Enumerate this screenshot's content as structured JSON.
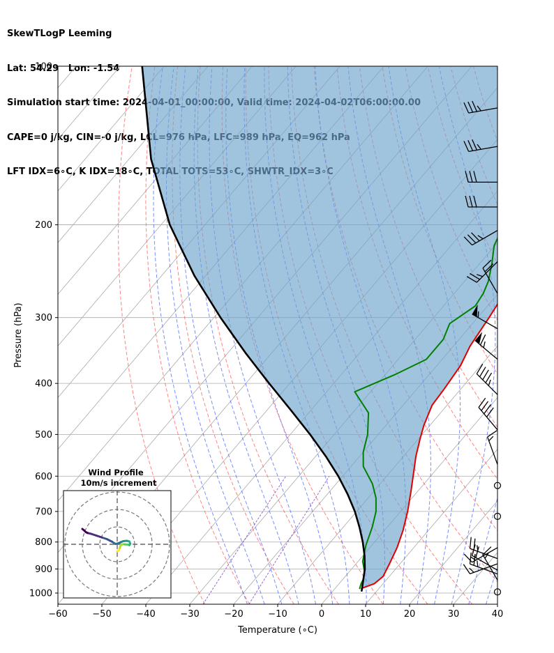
{
  "header": {
    "line1": "SkewTLogP Leeming",
    "line2": "Lat: 54.29   Lon: -1.54",
    "line3": "Simulation start time: 2024-04-01_00:00:00, Valid time: 2024-04-02T06:00:00.00",
    "line4": "CAPE=0 j/kg, CIN=-0 j/kg, LCL=976 hPa, LFC=989 hPa, EQ=962 hPa",
    "line5": "LFT IDX=6∘C, K IDX=18∘C, TOTAL TOTS=53∘C, SHWTR_IDX=3∘C"
  },
  "chart_data": {
    "type": "line",
    "subtype": "skew-t log-p",
    "xlabel": "Temperature (∘C)",
    "ylabel": "Pressure (hPa)",
    "xlim": [
      -60,
      40
    ],
    "ylim": [
      1050,
      100
    ],
    "y_scale": "log",
    "grid": true,
    "x_ticks": [
      -60,
      -50,
      -40,
      -30,
      -20,
      -10,
      0,
      10,
      20,
      30,
      40
    ],
    "y_ticks": [
      100,
      200,
      300,
      400,
      500,
      600,
      700,
      800,
      900,
      1000
    ],
    "colors": {
      "temperature": "#e00000",
      "dewpoint": "#008000",
      "parcel": "#000000",
      "cape_fill": "#6fa4cc",
      "dry_adiabat": "#ff4040",
      "moist_adiabat": "#3050ff",
      "mixing_ratio": "#8040c0",
      "isotherm": "#aaaaaa",
      "wind_barb": "#000000"
    },
    "series": [
      {
        "key": "temperature",
        "points": [
          [
            6,
            980
          ],
          [
            8,
            960
          ],
          [
            8.6,
            930
          ],
          [
            7.6,
            880
          ],
          [
            6.2,
            820
          ],
          [
            4.2,
            760
          ],
          [
            1.6,
            700
          ],
          [
            -1.6,
            640
          ],
          [
            -4.6,
            590
          ],
          [
            -7.2,
            550
          ],
          [
            -9.6,
            510
          ],
          [
            -11.4,
            480
          ],
          [
            -13.4,
            440
          ],
          [
            -13.8,
            410
          ],
          [
            -14.6,
            370
          ],
          [
            -16.2,
            340
          ],
          [
            -16.8,
            320
          ],
          [
            -17.4,
            300
          ],
          [
            -18.4,
            275
          ],
          [
            -19.6,
            255
          ],
          [
            -21.4,
            238
          ],
          [
            -23.8,
            224
          ],
          [
            -26.6,
            210
          ],
          [
            -29.8,
            195
          ],
          [
            -32,
            180
          ],
          [
            -33.2,
            166
          ],
          [
            -34.2,
            153
          ],
          [
            -36.2,
            140
          ],
          [
            -39.2,
            126
          ],
          [
            -41.4,
            112
          ],
          [
            -42,
            100
          ]
        ]
      },
      {
        "key": "dewpoint",
        "points": [
          [
            5.6,
            980
          ],
          [
            5,
            960
          ],
          [
            4.6,
            940
          ],
          [
            3.4,
            910
          ],
          [
            1,
            870
          ],
          [
            -1.4,
            810
          ],
          [
            -3.4,
            750
          ],
          [
            -5.6,
            700
          ],
          [
            -8.2,
            660
          ],
          [
            -11.8,
            620
          ],
          [
            -17.2,
            575
          ],
          [
            -20,
            540
          ],
          [
            -22.4,
            500
          ],
          [
            -26.4,
            455
          ],
          [
            -33.6,
            415
          ],
          [
            -27.8,
            385
          ],
          [
            -23.6,
            360
          ],
          [
            -23.6,
            330
          ],
          [
            -25.2,
            308
          ],
          [
            -22.8,
            285
          ],
          [
            -23.4,
            270
          ],
          [
            -24.6,
            256
          ],
          [
            -27.2,
            237
          ],
          [
            -30.2,
            219
          ],
          [
            -32,
            200
          ],
          [
            -25.2,
            172
          ],
          [
            -21.8,
            147
          ],
          [
            -21.6,
            130
          ],
          [
            -22.6,
            112
          ],
          [
            -23,
            100
          ]
        ]
      },
      {
        "key": "parcel",
        "points": [
          [
            6.5,
            990
          ],
          [
            5,
            950
          ],
          [
            3,
            900
          ],
          [
            0.4,
            850
          ],
          [
            -2.7,
            800
          ],
          [
            -6.3,
            750
          ],
          [
            -10.4,
            700
          ],
          [
            -15.3,
            650
          ],
          [
            -21,
            600
          ],
          [
            -27.7,
            550
          ],
          [
            -35.5,
            500
          ],
          [
            -44.5,
            450
          ],
          [
            -54.7,
            400
          ],
          [
            -66,
            350
          ],
          [
            -78.5,
            300
          ],
          [
            -92.5,
            250
          ],
          [
            -108,
            200
          ],
          [
            -125,
            150
          ],
          [
            -145,
            100
          ]
        ]
      }
    ],
    "wind_barbs": [
      {
        "p": 120,
        "speed_kt": 35,
        "dir": 260
      },
      {
        "p": 142,
        "speed_kt": 35,
        "dir": 260
      },
      {
        "p": 166,
        "speed_kt": 30,
        "dir": 270
      },
      {
        "p": 185,
        "speed_kt": 30,
        "dir": 270
      },
      {
        "p": 205,
        "speed_kt": 35,
        "dir": 240
      },
      {
        "p": 235,
        "speed_kt": 25,
        "dir": 225
      },
      {
        "p": 270,
        "speed_kt": 20,
        "dir": 330
      },
      {
        "p": 315,
        "speed_kt": 55,
        "dir": 300
      },
      {
        "p": 360,
        "speed_kt": 65,
        "dir": 310
      },
      {
        "p": 420,
        "speed_kt": 45,
        "dir": 315
      },
      {
        "p": 490,
        "speed_kt": 40,
        "dir": 320
      },
      {
        "p": 570,
        "speed_kt": 15,
        "dir": 340
      },
      {
        "p": 625,
        "speed_kt": 0,
        "dir": 0
      },
      {
        "p": 715,
        "speed_kt": 0,
        "dir": 0
      },
      {
        "p": 820,
        "speed_kt": 15,
        "dir": 240
      },
      {
        "p": 860,
        "speed_kt": 25,
        "dir": 290
      },
      {
        "p": 880,
        "speed_kt": 15,
        "dir": 250
      },
      {
        "p": 905,
        "speed_kt": 20,
        "dir": 300
      },
      {
        "p": 920,
        "speed_kt": 25,
        "dir": 290
      },
      {
        "p": 945,
        "speed_kt": 15,
        "dir": 330
      },
      {
        "p": 995,
        "speed_kt": 0,
        "dir": 0
      }
    ],
    "hodograph": {
      "title": "Wind Profile",
      "subtitle": "10m/s increment",
      "ring_spacing_ms": 10,
      "points": [
        [
          0,
          -4
        ],
        [
          1,
          -3.5
        ],
        [
          1.5,
          -2
        ],
        [
          2,
          -0.5
        ],
        [
          3,
          0
        ],
        [
          4,
          0
        ],
        [
          6,
          -0.2
        ],
        [
          7,
          -0.5
        ],
        [
          7.5,
          0.3
        ],
        [
          7,
          1.6
        ],
        [
          5.5,
          2
        ],
        [
          3.5,
          1.8
        ],
        [
          2,
          1.2
        ],
        [
          0.5,
          0.5
        ],
        [
          -1,
          0.2
        ],
        [
          -3,
          1.5
        ],
        [
          -6,
          3
        ],
        [
          -9,
          4
        ],
        [
          -12,
          5
        ],
        [
          -15,
          6
        ],
        [
          -17,
          6.5
        ],
        [
          -18,
          7
        ],
        [
          -19,
          8
        ],
        [
          -20,
          8.8
        ]
      ]
    }
  }
}
